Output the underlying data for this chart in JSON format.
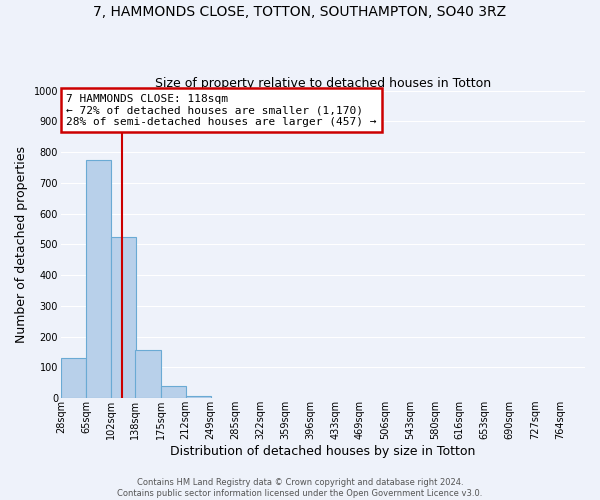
{
  "title": "7, HAMMONDS CLOSE, TOTTON, SOUTHAMPTON, SO40 3RZ",
  "subtitle": "Size of property relative to detached houses in Totton",
  "xlabel": "Distribution of detached houses by size in Totton",
  "ylabel": "Number of detached properties",
  "bar_edges": [
    28,
    65,
    102,
    138,
    175,
    212,
    249,
    285,
    322,
    359,
    396,
    433,
    469,
    506,
    543,
    580,
    616,
    653,
    690,
    727,
    764
  ],
  "bar_heights": [
    130,
    775,
    525,
    155,
    38,
    8,
    0,
    0,
    0,
    0,
    0,
    0,
    0,
    0,
    0,
    0,
    0,
    0,
    0,
    0
  ],
  "bar_color": "#b8d0ea",
  "bar_edgecolor": "#6aaad4",
  "property_line_x": 118,
  "property_line_color": "#cc0000",
  "ylim": [
    0,
    1000
  ],
  "yticks": [
    0,
    100,
    200,
    300,
    400,
    500,
    600,
    700,
    800,
    900,
    1000
  ],
  "xtick_labels": [
    "28sqm",
    "65sqm",
    "102sqm",
    "138sqm",
    "175sqm",
    "212sqm",
    "249sqm",
    "285sqm",
    "322sqm",
    "359sqm",
    "396sqm",
    "433sqm",
    "469sqm",
    "506sqm",
    "543sqm",
    "580sqm",
    "616sqm",
    "653sqm",
    "690sqm",
    "727sqm",
    "764sqm"
  ],
  "annotation_title": "7 HAMMONDS CLOSE: 118sqm",
  "annotation_line1": "← 72% of detached houses are smaller (1,170)",
  "annotation_line2": "28% of semi-detached houses are larger (457) →",
  "annotation_box_color": "#ffffff",
  "annotation_box_edgecolor": "#cc0000",
  "footer1": "Contains HM Land Registry data © Crown copyright and database right 2024.",
  "footer2": "Contains public sector information licensed under the Open Government Licence v3.0.",
  "background_color": "#eef2fa",
  "grid_color": "#ffffff",
  "title_fontsize": 10,
  "subtitle_fontsize": 9,
  "axis_label_fontsize": 9,
  "tick_fontsize": 7,
  "annotation_fontsize": 8,
  "footer_fontsize": 6
}
